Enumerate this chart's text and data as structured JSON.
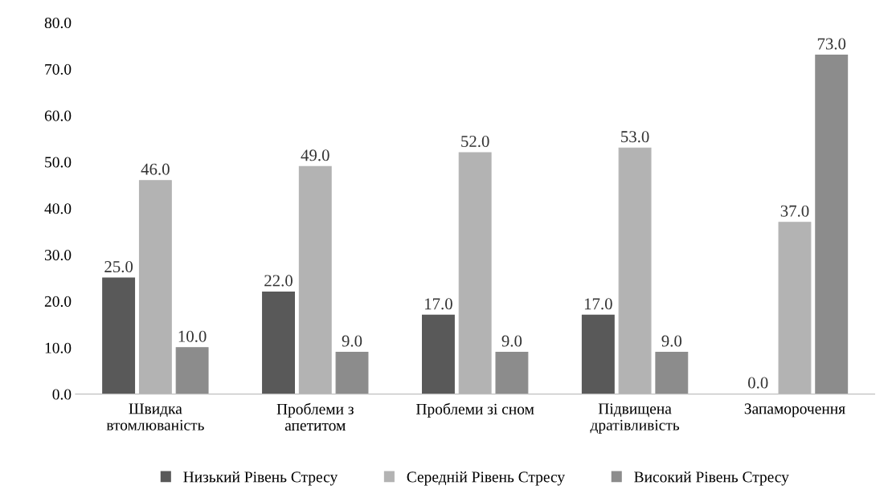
{
  "chart_data": {
    "type": "bar",
    "categories": [
      "Швидка\nвтомлюваність",
      "Проблеми з\nапетитом",
      "Проблеми зі сном",
      "Підвищена\nдратівливість",
      "Запаморочення"
    ],
    "series": [
      {
        "name": "Низький Рівень Стресу",
        "color": "#595959",
        "values": [
          25,
          22,
          17,
          17,
          0
        ],
        "value_labels": [
          "25.0",
          "22.0",
          "17.0",
          "17.0",
          "0.0"
        ]
      },
      {
        "name": "Середній Рівень Стресу",
        "color": "#b3b3b3",
        "values": [
          46,
          49,
          52,
          53,
          37
        ],
        "value_labels": [
          "46.0",
          "49.0",
          "52.0",
          "53.0",
          "37.0"
        ]
      },
      {
        "name": "Високий Рівень Стресу",
        "color": "#8c8c8c",
        "values": [
          10,
          9,
          9,
          9,
          73
        ],
        "value_labels": [
          "10.0",
          "9.0",
          "9.0",
          "9.0",
          "73.0"
        ]
      }
    ],
    "ylim": [
      0,
      80
    ],
    "yticks": [
      {
        "value": 0,
        "label": "0.0"
      },
      {
        "value": 10,
        "label": "10.0"
      },
      {
        "value": 20,
        "label": "20.0"
      },
      {
        "value": 30,
        "label": "30.0"
      },
      {
        "value": 40,
        "label": "40.0"
      },
      {
        "value": 50,
        "label": "50.0"
      },
      {
        "value": 60,
        "label": "60.0"
      },
      {
        "value": 70,
        "label": "70.0"
      },
      {
        "value": 80,
        "label": "80.0"
      }
    ],
    "grid": false,
    "legend": "bottom"
  }
}
